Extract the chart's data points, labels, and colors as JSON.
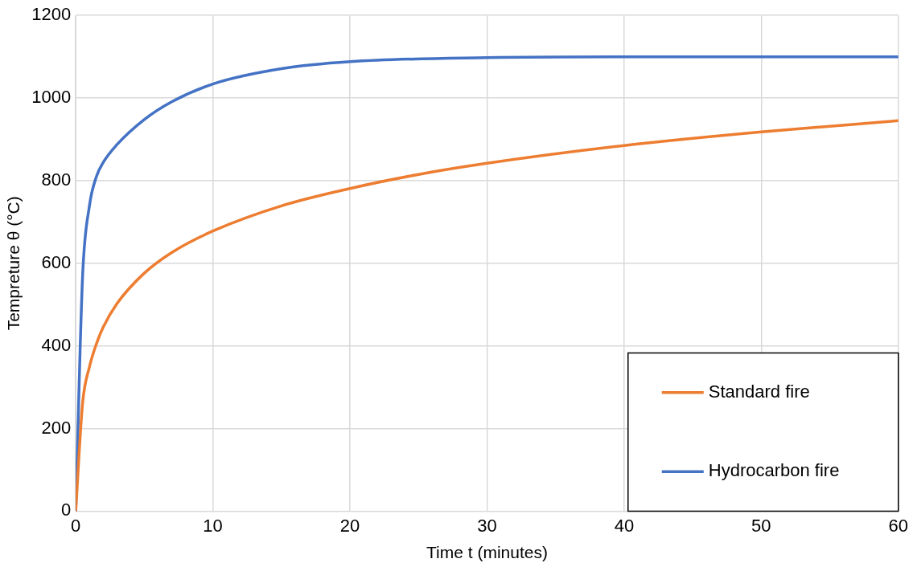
{
  "chart_data": {
    "type": "line",
    "xlabel": "Time t (minutes)",
    "ylabel": "Tempreture θ (°C)",
    "xlim": [
      0,
      60
    ],
    "xticks": [
      0,
      10,
      20,
      30,
      40,
      50,
      60
    ],
    "ylim": [
      0,
      1200
    ],
    "yticks": [
      0,
      200,
      400,
      600,
      800,
      1000,
      1200
    ],
    "grid": true,
    "legend": "bottom right",
    "marker": "none",
    "line_style": "solid",
    "series": [
      {
        "name": "Standard fire",
        "color": "#ed7d31",
        "x": [
          0,
          0.5,
          1,
          1.5,
          2,
          3,
          5,
          7,
          10,
          15,
          20,
          25,
          30,
          40,
          50,
          60
        ],
        "values": [
          0,
          261,
          349,
          404,
          445,
          502,
          576,
          626,
          678,
          739,
          781,
          815,
          842,
          885,
          918,
          945
        ]
      },
      {
        "name": "Hydrocarbon fire",
        "color": "#4472c4",
        "x": [
          0,
          0.5,
          1,
          1.5,
          2,
          3,
          5,
          7,
          10,
          15,
          20,
          30,
          40,
          60
        ],
        "values": [
          0,
          568,
          739,
          809,
          844,
          887,
          948,
          991,
          1034,
          1071,
          1088,
          1098,
          1100,
          1100
        ]
      }
    ]
  }
}
